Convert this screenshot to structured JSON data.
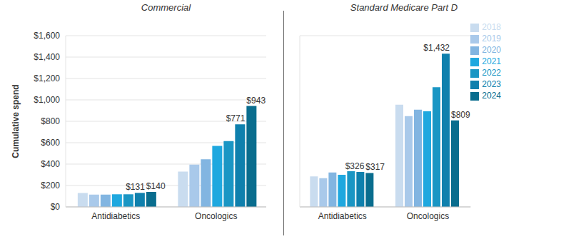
{
  "chart_data": [
    {
      "type": "bar",
      "title": "Commercial",
      "y_label": "Cumulative spend",
      "categories": [
        "Antidiabetics",
        "Oncologics"
      ],
      "series": [
        {
          "name": "2018",
          "color": "#c9dcef",
          "values": [
            130,
            330
          ],
          "value_labels": [
            null,
            null
          ]
        },
        {
          "name": "2019",
          "color": "#a9c9ea",
          "values": [
            115,
            395
          ],
          "value_labels": [
            null,
            null
          ]
        },
        {
          "name": "2020",
          "color": "#82b5e1",
          "values": [
            115,
            445
          ],
          "value_labels": [
            null,
            null
          ]
        },
        {
          "name": "2021",
          "color": "#1fa8df",
          "values": [
            118,
            570
          ],
          "value_labels": [
            null,
            null
          ]
        },
        {
          "name": "2022",
          "color": "#1a96c4",
          "values": [
            118,
            615
          ],
          "value_labels": [
            null,
            null
          ]
        },
        {
          "name": "2023",
          "color": "#0f80ad",
          "values": [
            131,
            771
          ],
          "value_labels": [
            "$131",
            "$771"
          ]
        },
        {
          "name": "2024",
          "color": "#0a6d8e",
          "values": [
            140,
            943
          ],
          "value_labels": [
            "$140",
            "$943"
          ]
        }
      ],
      "ylim": [
        0,
        1600
      ],
      "yticks": [
        {
          "value": 0,
          "label": "$0"
        },
        {
          "value": 200,
          "label": "$200"
        },
        {
          "value": 400,
          "label": "$400"
        },
        {
          "value": 600,
          "label": "$600"
        },
        {
          "value": 800,
          "label": "$800"
        },
        {
          "value": 1000,
          "label": "$1,000"
        },
        {
          "value": 1200,
          "label": "$1,200"
        },
        {
          "value": 1400,
          "label": "$1,400"
        },
        {
          "value": 1600,
          "label": "$1,600"
        }
      ],
      "grid": true
    },
    {
      "type": "bar",
      "title": "Standard Medicare Part D",
      "categories": [
        "Antidiabetics",
        "Oncologics"
      ],
      "series": [
        {
          "name": "2018",
          "color": "#c9dcef",
          "values": [
            285,
            955
          ],
          "value_labels": [
            null,
            null
          ]
        },
        {
          "name": "2019",
          "color": "#a9c9ea",
          "values": [
            268,
            848
          ],
          "value_labels": [
            null,
            null
          ]
        },
        {
          "name": "2020",
          "color": "#82b5e1",
          "values": [
            322,
            908
          ],
          "value_labels": [
            null,
            null
          ]
        },
        {
          "name": "2021",
          "color": "#1fa8df",
          "values": [
            300,
            893
          ],
          "value_labels": [
            null,
            null
          ]
        },
        {
          "name": "2022",
          "color": "#1a96c4",
          "values": [
            333,
            1118
          ],
          "value_labels": [
            null,
            null
          ]
        },
        {
          "name": "2023",
          "color": "#0f80ad",
          "values": [
            326,
            1432
          ],
          "value_labels": [
            "$326",
            "$1,432"
          ]
        },
        {
          "name": "2024",
          "color": "#0a6d8e",
          "values": [
            317,
            809
          ],
          "value_labels": [
            "$317",
            "$809"
          ]
        }
      ],
      "ylim": [
        0,
        1600
      ],
      "yticks": [
        0,
        200,
        400,
        600,
        800,
        1000,
        1200,
        1400,
        1600
      ],
      "tick_labels": "x",
      "legend": "right",
      "grid": true
    }
  ]
}
